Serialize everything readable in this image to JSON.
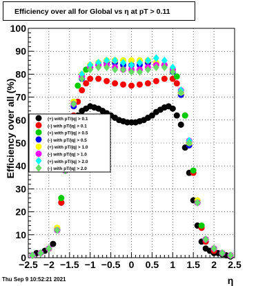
{
  "title": "Efficiency over all for Global vs   η at pT > 0.11",
  "timestamp": "Thu Sep  9 10:52:21 2021",
  "chart_data": {
    "type": "scatter",
    "title": "Efficiency over all for Global vs   η at pT > 0.11",
    "xlabel": "η",
    "ylabel": "Efficiency over all (%)",
    "xlim": [
      -2.5,
      2.5
    ],
    "ylim": [
      0,
      100
    ],
    "xticks": [
      "−2.5",
      "−2",
      "−1.5",
      "−1",
      "−0.5",
      "0",
      "0.5",
      "1",
      "1.5",
      "2",
      "2.5"
    ],
    "yticks": [
      "0",
      "10",
      "20",
      "30",
      "40",
      "50",
      "60",
      "70",
      "80",
      "90",
      "100"
    ],
    "xtick_values": [
      -2.5,
      -2,
      -1.5,
      -1,
      -0.5,
      0,
      0.5,
      1,
      1.5,
      2,
      2.5
    ],
    "ytick_values": [
      0,
      10,
      20,
      30,
      40,
      50,
      60,
      70,
      80,
      90,
      100
    ],
    "grid": true,
    "legend_position": "left-middle",
    "series": [
      {
        "name": "(+) with pT/|q| > 0.1",
        "color": "#000000",
        "marker": "circle",
        "x": [
          -2.4,
          -2.3,
          -2.2,
          -2.1,
          -2.0,
          -1.9,
          -1.8,
          -1.7,
          -1.6,
          -1.5,
          -1.4,
          -1.3,
          -1.2,
          -1.1,
          -1.0,
          -0.9,
          -0.8,
          -0.7,
          -0.6,
          -0.5,
          -0.4,
          -0.3,
          -0.2,
          -0.1,
          0.0,
          0.1,
          0.2,
          0.3,
          0.4,
          0.5,
          0.6,
          0.7,
          0.8,
          0.9,
          1.0,
          1.1,
          1.2,
          1.3,
          1.4,
          1.5,
          1.6,
          1.7,
          1.8,
          1.9,
          2.0,
          2.1,
          2.2,
          2.3,
          2.4
        ],
        "y": [
          1,
          2,
          2,
          3,
          4,
          6,
          12,
          24,
          38,
          51,
          59,
          62,
          64,
          65,
          66,
          65.5,
          65,
          64,
          63,
          62,
          61,
          60,
          59.5,
          59,
          59,
          59,
          59.5,
          60,
          61,
          62,
          63.5,
          64.5,
          65.5,
          66,
          65,
          62,
          58,
          48,
          37,
          25,
          14,
          7,
          4,
          3,
          2,
          2,
          1.5,
          1,
          0.5
        ]
      },
      {
        "name": "(-) with pT/|q| > 0.1",
        "color": "#ff0000",
        "marker": "circle",
        "x": [
          -2.4,
          -2.2,
          -2.0,
          -1.8,
          -1.7,
          -1.6,
          -1.5,
          -1.4,
          -1.3,
          -1.2,
          -1.1,
          -1.0,
          -0.8,
          -0.6,
          -0.4,
          -0.2,
          0.0,
          0.2,
          0.4,
          0.6,
          0.8,
          1.0,
          1.1,
          1.2,
          1.3,
          1.4,
          1.5,
          1.6,
          1.7,
          1.8,
          2.0,
          2.2,
          2.4
        ],
        "y": [
          1,
          2,
          4,
          12,
          24,
          38,
          52,
          62,
          68,
          73,
          76,
          78,
          78,
          77,
          76,
          75.5,
          75,
          75.5,
          76,
          77,
          78,
          78,
          76,
          72,
          62,
          50,
          37,
          24,
          13,
          7,
          3,
          2,
          1
        ]
      },
      {
        "name": "(+) with pT/|q| > 0.5",
        "color": "#00cc00",
        "marker": "circle",
        "x": [
          -2.4,
          -2.2,
          -2.0,
          -1.8,
          -1.7,
          -1.6,
          -1.5,
          -1.4,
          -1.3,
          -1.2,
          -1.1,
          -1.0,
          -0.8,
          -0.6,
          -0.4,
          -0.2,
          0.0,
          0.2,
          0.4,
          0.6,
          0.8,
          1.0,
          1.1,
          1.2,
          1.3,
          1.4,
          1.5,
          1.6,
          1.7,
          1.8,
          2.0,
          2.2,
          2.4
        ],
        "y": [
          1,
          2,
          4,
          13,
          26,
          40,
          56,
          68,
          75,
          79,
          82,
          84,
          85,
          86,
          86,
          86,
          86,
          86,
          85,
          85,
          84,
          82,
          79,
          72,
          62,
          50,
          38,
          25,
          14,
          8,
          4,
          2,
          1
        ]
      },
      {
        "name": "(-) with pT/|q| > 0.5",
        "color": "#0000ff",
        "marker": "circle",
        "x": [
          -2.4,
          -2.2,
          -2.0,
          -1.8,
          -1.6,
          -1.4,
          -1.2,
          -1.0,
          -0.8,
          -0.6,
          -0.4,
          -0.2,
          0.0,
          0.2,
          0.4,
          0.6,
          0.8,
          1.0,
          1.2,
          1.4,
          1.6,
          1.8,
          2.0,
          2.2,
          2.4
        ],
        "y": [
          1,
          2,
          4,
          12,
          38,
          66,
          78,
          83,
          84,
          85,
          85,
          84,
          84,
          84,
          85,
          85,
          84,
          81,
          71,
          49,
          24,
          8,
          4,
          2,
          1
        ]
      },
      {
        "name": "(+) with pT/|q| > 1.0",
        "color": "#ffff00",
        "marker": "circle",
        "x": [
          -2.4,
          -2.2,
          -2.0,
          -1.8,
          -1.6,
          -1.4,
          -1.2,
          -1.0,
          -0.8,
          -0.6,
          -0.4,
          -0.2,
          0.0,
          0.2,
          0.4,
          0.6,
          0.8,
          1.0,
          1.2,
          1.4,
          1.6,
          1.8,
          2.0,
          2.2,
          2.4
        ],
        "y": [
          1,
          2,
          4,
          13,
          40,
          68,
          80,
          84,
          85,
          86,
          86,
          86,
          86,
          86,
          86,
          85,
          84,
          82,
          72,
          50,
          25,
          8,
          4,
          2,
          1
        ]
      },
      {
        "name": "(-) with pT/|q| > 1.0",
        "color": "#ff00ff",
        "marker": "circle",
        "x": [
          -2.4,
          -2.2,
          -2.0,
          -1.8,
          -1.6,
          -1.4,
          -1.2,
          -1.0,
          -0.8,
          -0.6,
          -0.4,
          -0.2,
          0.0,
          0.2,
          0.4,
          0.6,
          0.8,
          1.0,
          1.2,
          1.4,
          1.6,
          1.8,
          2.0,
          2.2,
          2.4
        ],
        "y": [
          1,
          2,
          4,
          12,
          38,
          67,
          79,
          83,
          84,
          84,
          83,
          82,
          82,
          82,
          83,
          84,
          84,
          82,
          73,
          51,
          24,
          8,
          4,
          2,
          1
        ]
      },
      {
        "name": "(+) with pT/|q| > 2.0",
        "color": "#00ffff",
        "marker": "diamond",
        "x": [
          -2.4,
          -2.2,
          -2.0,
          -1.8,
          -1.6,
          -1.4,
          -1.2,
          -1.0,
          -0.8,
          -0.6,
          -0.4,
          -0.2,
          0.0,
          0.2,
          0.4,
          0.6,
          0.8,
          1.0,
          1.2,
          1.4,
          1.6,
          1.8,
          2.0,
          2.2,
          2.4
        ],
        "y": [
          1,
          2,
          4,
          12,
          38,
          67,
          80,
          84,
          85,
          86,
          86,
          85,
          84,
          85,
          86,
          87,
          86,
          83,
          73,
          51,
          24,
          8,
          4,
          2,
          1
        ]
      },
      {
        "name": "(-) with pT/|q| > 2.0",
        "color": "#66dd66",
        "marker": "diamond",
        "x": [
          -2.4,
          -2.2,
          -2.0,
          -1.8,
          -1.6,
          -1.4,
          -1.2,
          -1.0,
          -0.8,
          -0.6,
          -0.4,
          -0.2,
          0.0,
          0.2,
          0.4,
          0.6,
          0.8,
          1.0,
          1.2,
          1.4,
          1.6,
          1.8,
          2.0,
          2.2,
          2.4
        ],
        "y": [
          1,
          2,
          4,
          12,
          38,
          67,
          78,
          82,
          83,
          83,
          82,
          82,
          81,
          81,
          82,
          83,
          83,
          81,
          72,
          50,
          24,
          8,
          4,
          2,
          1
        ]
      }
    ]
  }
}
